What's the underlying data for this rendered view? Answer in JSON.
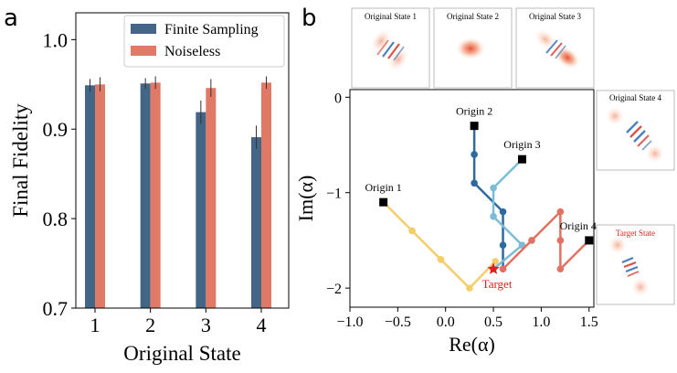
{
  "panel_labels": {
    "a": "a",
    "b": "b"
  },
  "chart_data": [
    {
      "type": "bar",
      "xlabel": "Original State",
      "ylabel": "Final Fidelity",
      "categories": [
        "1",
        "2",
        "3",
        "4"
      ],
      "ylim": [
        0.7,
        1.03
      ],
      "yticks": [
        "0.7",
        "0.8",
        "0.9",
        "1.0"
      ],
      "legend_position": "top-right",
      "series": [
        {
          "name": "Finite Sampling",
          "color": "#436586",
          "values": [
            0.949,
            0.951,
            0.919,
            0.891
          ],
          "errors": [
            0.007,
            0.006,
            0.013,
            0.013
          ]
        },
        {
          "name": "Noiseless",
          "color": "#e07a67",
          "values": [
            0.95,
            0.952,
            0.946,
            0.952
          ],
          "errors": [
            0.008,
            0.007,
            0.01,
            0.007
          ]
        }
      ]
    },
    {
      "type": "line",
      "xlabel": "Re(α)",
      "ylabel": "Im(α)",
      "xlim": [
        -1.0,
        1.55
      ],
      "ylim": [
        -2.2,
        0.08
      ],
      "xticks": [
        "−1.0",
        "−0.5",
        "0.0",
        "0.5",
        "1.0",
        "1.5"
      ],
      "yticks": [
        "0",
        "−1",
        "−2"
      ],
      "target": {
        "label": "Target",
        "x": 0.5,
        "y": -1.8,
        "color": "#e0201c"
      },
      "series": [
        {
          "name": "Origin 1",
          "color": "#f6cd6b",
          "points": [
            [
              -0.65,
              -1.1
            ],
            [
              -0.35,
              -1.4
            ],
            [
              -0.05,
              -1.7
            ],
            [
              0.25,
              -2.0
            ],
            [
              0.52,
              -1.72
            ]
          ]
        },
        {
          "name": "Origin 2",
          "color": "#2f6a9f",
          "points": [
            [
              0.3,
              -0.3
            ],
            [
              0.3,
              -0.6
            ],
            [
              0.3,
              -0.9
            ],
            [
              0.6,
              -1.2
            ],
            [
              0.6,
              -1.55
            ],
            [
              0.6,
              -1.8
            ]
          ]
        },
        {
          "name": "Origin 3",
          "color": "#7cbcd7",
          "points": [
            [
              0.8,
              -0.65
            ],
            [
              0.5,
              -0.95
            ],
            [
              0.5,
              -1.25
            ],
            [
              0.8,
              -1.55
            ],
            [
              0.5,
              -1.8
            ]
          ]
        },
        {
          "name": "Origin 4",
          "color": "#e27162",
          "points": [
            [
              1.5,
              -1.5
            ],
            [
              1.2,
              -1.8
            ],
            [
              1.2,
              -1.5
            ],
            [
              1.2,
              -1.2
            ],
            [
              0.9,
              -1.5
            ],
            [
              0.6,
              -1.8
            ]
          ]
        }
      ],
      "origins": [
        {
          "label": "Origin 1",
          "x": -0.65,
          "y": -1.1
        },
        {
          "label": "Origin 2",
          "x": 0.3,
          "y": -0.3
        },
        {
          "label": "Origin 3",
          "x": 0.8,
          "y": -0.65
        },
        {
          "label": "Origin 4",
          "x": 1.5,
          "y": -1.5
        }
      ]
    }
  ],
  "thumbnails": [
    {
      "label": "Original State 1",
      "pattern": "diagonal-fringe-stripes"
    },
    {
      "label": "Original State 2",
      "pattern": "single-red-blob"
    },
    {
      "label": "Original State 3",
      "pattern": "diagonal-fringe-with-lobe"
    },
    {
      "label": "Original State 4",
      "pattern": "cat-state-fringes"
    },
    {
      "label": "Target State",
      "pattern": "cat-state-fringes-target",
      "label_color": "#e0201c"
    }
  ]
}
